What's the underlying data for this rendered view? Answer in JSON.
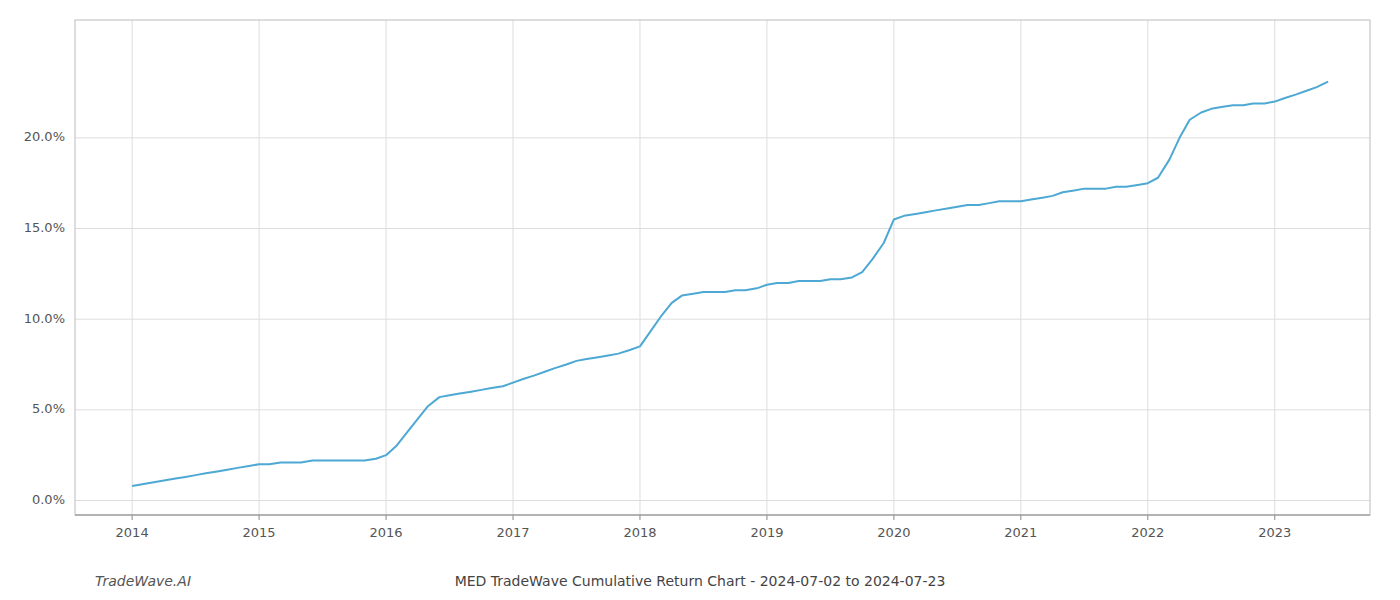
{
  "chart_data": {
    "type": "line",
    "title": "MED TradeWave Cumulative Return Chart - 2024-07-02 to 2024-07-23",
    "annotations": [
      "TradeWave.AI"
    ],
    "color": "#4da8d4",
    "grid": true,
    "xlim": [
      2013.55,
      2023.75
    ],
    "ylim": [
      -0.008,
      0.265
    ],
    "xticks": [
      2014,
      2015,
      2016,
      2017,
      2018,
      2019,
      2020,
      2021,
      2022,
      2023
    ],
    "yticks": [
      {
        "value": 0.0,
        "label": "0.0%"
      },
      {
        "value": 0.05,
        "label": "5.0%"
      },
      {
        "value": 0.1,
        "label": "10.0%"
      },
      {
        "value": 0.15,
        "label": "15.0%"
      },
      {
        "value": 0.2,
        "label": "20.0%"
      }
    ],
    "x": [
      2014.0,
      2014.08,
      2014.17,
      2014.25,
      2014.33,
      2014.42,
      2014.5,
      2014.58,
      2014.67,
      2014.75,
      2014.83,
      2014.92,
      2015.0,
      2015.08,
      2015.17,
      2015.25,
      2015.33,
      2015.42,
      2015.5,
      2015.58,
      2015.67,
      2015.75,
      2015.83,
      2015.92,
      2016.0,
      2016.08,
      2016.17,
      2016.25,
      2016.33,
      2016.42,
      2016.5,
      2016.58,
      2016.67,
      2016.75,
      2016.83,
      2016.92,
      2017.0,
      2017.08,
      2017.17,
      2017.25,
      2017.33,
      2017.42,
      2017.5,
      2017.58,
      2017.67,
      2017.75,
      2017.83,
      2017.92,
      2018.0,
      2018.08,
      2018.17,
      2018.25,
      2018.33,
      2018.42,
      2018.5,
      2018.58,
      2018.67,
      2018.75,
      2018.83,
      2018.92,
      2019.0,
      2019.08,
      2019.17,
      2019.25,
      2019.33,
      2019.42,
      2019.5,
      2019.58,
      2019.67,
      2019.75,
      2019.83,
      2019.92,
      2020.0,
      2020.08,
      2020.17,
      2020.25,
      2020.33,
      2020.42,
      2020.5,
      2020.58,
      2020.67,
      2020.75,
      2020.83,
      2020.92,
      2021.0,
      2021.08,
      2021.17,
      2021.25,
      2021.33,
      2021.42,
      2021.5,
      2021.58,
      2021.67,
      2021.75,
      2021.83,
      2021.92,
      2022.0,
      2022.08,
      2022.17,
      2022.25,
      2022.33,
      2022.42,
      2022.5,
      2022.58,
      2022.67,
      2022.75,
      2022.83,
      2022.92,
      2023.0,
      2023.08,
      2023.17,
      2023.25,
      2023.33,
      2023.42
    ],
    "values": [
      0.008,
      0.009,
      0.01,
      0.011,
      0.012,
      0.013,
      0.014,
      0.015,
      0.016,
      0.017,
      0.018,
      0.019,
      0.02,
      0.02,
      0.021,
      0.021,
      0.021,
      0.022,
      0.022,
      0.022,
      0.022,
      0.022,
      0.022,
      0.023,
      0.025,
      0.03,
      0.038,
      0.045,
      0.052,
      0.057,
      0.058,
      0.059,
      0.06,
      0.061,
      0.062,
      0.063,
      0.065,
      0.067,
      0.069,
      0.071,
      0.073,
      0.075,
      0.077,
      0.078,
      0.079,
      0.08,
      0.081,
      0.083,
      0.085,
      0.093,
      0.102,
      0.109,
      0.113,
      0.114,
      0.115,
      0.115,
      0.115,
      0.116,
      0.116,
      0.117,
      0.119,
      0.12,
      0.12,
      0.121,
      0.121,
      0.121,
      0.122,
      0.122,
      0.123,
      0.126,
      0.133,
      0.142,
      0.155,
      0.157,
      0.158,
      0.159,
      0.16,
      0.161,
      0.162,
      0.163,
      0.163,
      0.164,
      0.165,
      0.165,
      0.165,
      0.166,
      0.167,
      0.168,
      0.17,
      0.171,
      0.172,
      0.172,
      0.172,
      0.173,
      0.173,
      0.174,
      0.175,
      0.178,
      0.188,
      0.2,
      0.21,
      0.214,
      0.216,
      0.217,
      0.218,
      0.218,
      0.219,
      0.219,
      0.22,
      0.222,
      0.224,
      0.226,
      0.228,
      0.231
    ]
  }
}
